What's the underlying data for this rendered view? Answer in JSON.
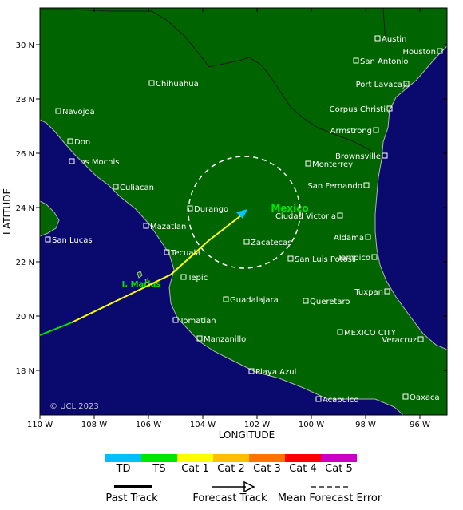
{
  "map": {
    "copyright": "© UCL 2023",
    "country_label": "Mexico",
    "island_label": "I. Marias",
    "x_axis_title": "LONGITUDE",
    "y_axis_title": "LATITUDE",
    "lon_ticks": [
      "110 W",
      "108 W",
      "106 W",
      "104 W",
      "102 W",
      "100 W",
      "98 W",
      "96 W"
    ],
    "lat_ticks": [
      "30 N",
      "28 N",
      "26 N",
      "24 N",
      "22 N",
      "20 N",
      "18 N"
    ],
    "colors": {
      "ocean": "#0a0a6e",
      "land": "#006400",
      "coast": "#b4b4b4",
      "border": "#1e1e1e"
    }
  },
  "cities": [
    {
      "name": "Austin"
    },
    {
      "name": "Houston"
    },
    {
      "name": "San Antonio"
    },
    {
      "name": "Chihuahua"
    },
    {
      "name": "Port Lavaca"
    },
    {
      "name": "Navojoa"
    },
    {
      "name": "Corpus Christi"
    },
    {
      "name": "Don"
    },
    {
      "name": "Armstrong"
    },
    {
      "name": "Los Mochis"
    },
    {
      "name": "Brownsville"
    },
    {
      "name": "Monterrey"
    },
    {
      "name": "Culiacan"
    },
    {
      "name": "San Fernando"
    },
    {
      "name": "Durango"
    },
    {
      "name": "Ciudad Victoria"
    },
    {
      "name": "San Lucas"
    },
    {
      "name": "Mazatlan"
    },
    {
      "name": "Zacatecas"
    },
    {
      "name": "Aldama"
    },
    {
      "name": "Tecuala"
    },
    {
      "name": "Tampico"
    },
    {
      "name": "San Luis Potosi"
    },
    {
      "name": "Tepic"
    },
    {
      "name": "Tuxpan"
    },
    {
      "name": "Guadalajara"
    },
    {
      "name": "Queretaro"
    },
    {
      "name": "Tomatlan"
    },
    {
      "name": "MEXICO CITY"
    },
    {
      "name": "Manzanillo"
    },
    {
      "name": "Veracruz"
    },
    {
      "name": "Playa Azul"
    },
    {
      "name": "Acapulco"
    },
    {
      "name": "Oaxaca"
    }
  ],
  "track": {
    "past_color": "#00e600",
    "forecast_color": "#ffff00",
    "arrow_color": "#00c8ff"
  },
  "legend": {
    "categories": [
      {
        "label": "TD",
        "color": "#00bfff"
      },
      {
        "label": "TS",
        "color": "#00e600"
      },
      {
        "label": "Cat 1",
        "color": "#ffff00"
      },
      {
        "label": "Cat 2",
        "color": "#ffbf00"
      },
      {
        "label": "Cat 3",
        "color": "#ff7300"
      },
      {
        "label": "Cat 4",
        "color": "#ff0000"
      },
      {
        "label": "Cat 5",
        "color": "#c800c8"
      }
    ],
    "past_track_label": "Past Track",
    "forecast_track_label": "Forecast Track",
    "error_label": "Mean Forecast Error"
  }
}
